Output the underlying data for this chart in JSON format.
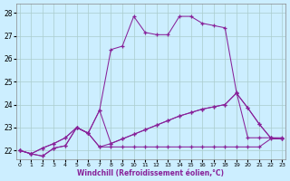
{
  "xlabel": "Windchill (Refroidissement éolien,°C)",
  "background_color": "#cceeff",
  "grid_color": "#aacccc",
  "line_color": "#882299",
  "x_ticks": [
    0,
    1,
    2,
    3,
    4,
    5,
    6,
    7,
    8,
    9,
    10,
    11,
    12,
    13,
    14,
    15,
    16,
    17,
    18,
    19,
    20,
    21,
    22,
    23
  ],
  "y_ticks": [
    22,
    23,
    24,
    25,
    26,
    27,
    28
  ],
  "ylim": [
    21.6,
    28.4
  ],
  "xlim": [
    -0.3,
    23.3
  ],
  "series": [
    [
      22.0,
      21.85,
      21.75,
      22.1,
      22.2,
      23.0,
      22.75,
      22.15,
      22.15,
      22.15,
      22.15,
      22.15,
      22.15,
      22.15,
      22.15,
      22.15,
      22.15,
      22.15,
      22.15,
      22.15,
      22.15,
      22.15,
      22.5,
      22.5
    ],
    [
      22.0,
      21.85,
      21.75,
      22.1,
      22.2,
      23.0,
      22.75,
      22.15,
      22.3,
      22.5,
      22.7,
      22.9,
      23.1,
      23.3,
      23.5,
      23.65,
      23.8,
      23.9,
      24.0,
      24.5,
      23.85,
      23.15,
      22.55,
      22.5
    ],
    [
      22.0,
      21.85,
      22.1,
      22.3,
      22.55,
      23.0,
      22.75,
      23.75,
      22.3,
      22.5,
      22.7,
      22.9,
      23.1,
      23.3,
      23.5,
      23.65,
      23.8,
      23.9,
      24.0,
      24.5,
      23.85,
      23.15,
      22.55,
      22.5
    ],
    [
      22.0,
      21.85,
      22.1,
      22.3,
      22.55,
      23.0,
      22.75,
      23.75,
      26.4,
      26.55,
      27.85,
      27.15,
      27.05,
      27.05,
      27.85,
      27.85,
      27.55,
      27.45,
      27.35,
      24.55,
      22.55,
      22.55,
      22.55,
      22.55
    ]
  ]
}
